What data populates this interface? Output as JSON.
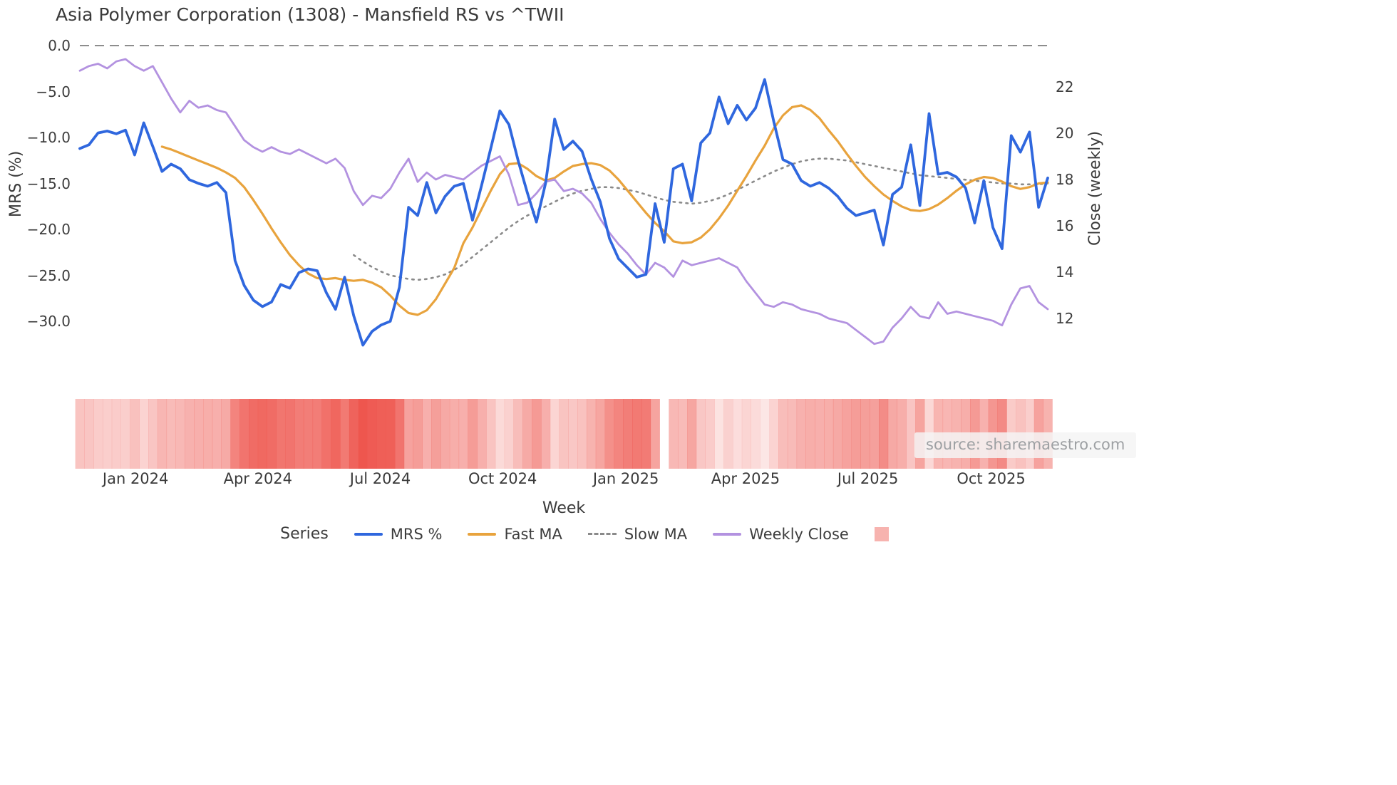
{
  "title": "Asia Polymer Corporation (1308) - Mansfield RS vs ^TWII",
  "source": "source: sharemaestro.com",
  "legend": {
    "title": "Series",
    "items": [
      {
        "label": "MRS %",
        "color": "#2f67de",
        "style": "solid"
      },
      {
        "label": "Fast MA",
        "color": "#e8a33d",
        "style": "solid"
      },
      {
        "label": "Slow MA",
        "color": "#8a8a8a",
        "style": "dashed"
      },
      {
        "label": "Weekly Close",
        "color": "#b392e0",
        "style": "solid"
      },
      {
        "label": "",
        "color": "#ee564e",
        "style": "swatch",
        "opacity": 0.45
      }
    ]
  },
  "chart_data": {
    "type": "line",
    "title": "Asia Polymer Corporation (1308) - Mansfield RS vs ^TWII",
    "grid": false,
    "legend_position": "bottom-center",
    "x_axis": {
      "title": "Week",
      "unit": "week",
      "n_weeks": 107,
      "tick_labels": [
        "Jan 2024",
        "Apr 2024",
        "Jul 2024",
        "Oct 2024",
        "Jan 2025",
        "Apr 2025",
        "Jul 2025",
        "Oct 2025"
      ],
      "tick_week_indices": [
        6.1,
        19.5,
        32.9,
        46.3,
        59.8,
        72.9,
        86.3,
        99.8
      ]
    },
    "left_axis": {
      "title": "MRS (%)",
      "tick_values": [
        0,
        -5,
        -10,
        -15,
        -20,
        -25,
        -30
      ],
      "tick_labels": [
        "0.0",
        "−5.0",
        "−10.0",
        "−15.0",
        "−20.0",
        "−25.0",
        "−30.0"
      ],
      "range": [
        -34,
        1
      ],
      "zero_line_dashed": true
    },
    "right_axis": {
      "title": "Close (weekly)",
      "tick_values": [
        22,
        20,
        18,
        16,
        14,
        12
      ],
      "tick_labels": [
        "22",
        "20",
        "18",
        "16",
        "14",
        "12"
      ],
      "range": [
        10.4,
        23.8
      ]
    },
    "series": [
      {
        "name": "MRS %",
        "axis": "left",
        "color": "#2f67de",
        "style": "solid",
        "values": [
          -11.2,
          -10.8,
          -9.5,
          -9.3,
          -9.6,
          -9.2,
          -11.9,
          -8.4,
          -11.0,
          -13.7,
          -12.9,
          -13.4,
          -14.6,
          -15.0,
          -15.3,
          -14.9,
          -16.0,
          -23.4,
          -26.1,
          -27.7,
          -28.4,
          -27.9,
          -26.0,
          -26.4,
          -24.7,
          -24.3,
          -24.5,
          -26.9,
          -28.7,
          -25.2,
          -29.4,
          -32.6,
          -31.1,
          -30.4,
          -30.0,
          -26.3,
          -17.6,
          -18.5,
          -14.9,
          -18.2,
          -16.4,
          -15.3,
          -15.0,
          -19.0,
          -15.2,
          -11.2,
          -7.1,
          -8.6,
          -12.5,
          -16.0,
          -19.2,
          -15.0,
          -8.0,
          -11.3,
          -10.4,
          -11.5,
          -14.5,
          -17.0,
          -21.0,
          -23.2,
          -24.2,
          -25.2,
          -24.9,
          -17.2,
          -21.4,
          -13.4,
          -12.9,
          -16.9,
          -10.6,
          -9.5,
          -5.6,
          -8.5,
          -6.5,
          -8.1,
          -6.8,
          -3.7,
          -8.3,
          -12.4,
          -12.9,
          -14.7,
          -15.3,
          -14.9,
          -15.5,
          -16.4,
          -17.7,
          -18.5,
          -18.2,
          -17.9,
          -21.7,
          -16.2,
          -15.4,
          -10.8,
          -17.4,
          -7.4,
          -14.0,
          -13.8,
          -14.3,
          -15.5,
          -19.3,
          -14.7,
          -19.8,
          -22.1,
          -9.8,
          -11.6,
          -9.4,
          -17.6,
          -14.4
        ]
      },
      {
        "name": "Fast MA",
        "axis": "left",
        "color": "#e8a33d",
        "style": "solid",
        "values": [
          null,
          null,
          null,
          null,
          null,
          null,
          null,
          null,
          null,
          -11.0,
          -11.3,
          -11.7,
          -12.1,
          -12.5,
          -12.9,
          -13.3,
          -13.8,
          -14.4,
          -15.4,
          -16.8,
          -18.3,
          -19.9,
          -21.4,
          -22.8,
          -23.9,
          -24.8,
          -25.3,
          -25.4,
          -25.3,
          -25.5,
          -25.6,
          -25.5,
          -25.8,
          -26.3,
          -27.2,
          -28.3,
          -29.1,
          -29.3,
          -28.8,
          -27.6,
          -25.9,
          -24.2,
          -21.5,
          -19.8,
          -17.8,
          -15.8,
          -14.0,
          -12.9,
          -12.8,
          -13.4,
          -14.2,
          -14.7,
          -14.4,
          -13.7,
          -13.1,
          -12.9,
          -12.8,
          -13.0,
          -13.6,
          -14.6,
          -15.8,
          -17.0,
          -18.2,
          -19.3,
          -20.2,
          -21.3,
          -21.5,
          -21.4,
          -20.9,
          -20.0,
          -18.8,
          -17.4,
          -15.8,
          -14.2,
          -12.5,
          -10.9,
          -9.0,
          -7.6,
          -6.7,
          -6.5,
          -7.0,
          -7.9,
          -9.2,
          -10.4,
          -11.8,
          -13.1,
          -14.3,
          -15.3,
          -16.2,
          -16.9,
          -17.5,
          -17.9,
          -18.0,
          -17.8,
          -17.3,
          -16.6,
          -15.8,
          -15.1,
          -14.6,
          -14.3,
          -14.4,
          -14.8,
          -15.3,
          -15.6,
          -15.4,
          -15.0,
          -14.9
        ]
      },
      {
        "name": "Slow MA",
        "axis": "left",
        "color": "#8a8a8a",
        "style": "dotted",
        "values": [
          null,
          null,
          null,
          null,
          null,
          null,
          null,
          null,
          null,
          null,
          null,
          null,
          null,
          null,
          null,
          null,
          null,
          null,
          null,
          null,
          null,
          null,
          null,
          null,
          null,
          null,
          null,
          null,
          null,
          null,
          -22.8,
          -23.5,
          -24.1,
          -24.6,
          -25.0,
          -25.2,
          -25.4,
          -25.5,
          -25.4,
          -25.2,
          -24.9,
          -24.4,
          -23.8,
          -23.0,
          -22.2,
          -21.4,
          -20.6,
          -19.8,
          -19.1,
          -18.5,
          -18.0,
          -17.5,
          -17.0,
          -16.5,
          -16.1,
          -15.8,
          -15.6,
          -15.4,
          -15.4,
          -15.5,
          -15.7,
          -15.9,
          -16.2,
          -16.5,
          -16.8,
          -17.0,
          -17.1,
          -17.2,
          -17.1,
          -16.9,
          -16.6,
          -16.2,
          -15.7,
          -15.2,
          -14.7,
          -14.2,
          -13.7,
          -13.3,
          -12.9,
          -12.6,
          -12.4,
          -12.3,
          -12.3,
          -12.4,
          -12.5,
          -12.7,
          -12.9,
          -13.1,
          -13.3,
          -13.5,
          -13.7,
          -13.9,
          -14.1,
          -14.2,
          -14.3,
          -14.4,
          -14.5,
          -14.6,
          -14.7,
          -14.8,
          -14.9,
          -15.0,
          -15.0,
          -15.1,
          -15.1,
          -15.1,
          -15.0
        ]
      },
      {
        "name": "Weekly Close",
        "axis": "right",
        "color": "#b392e0",
        "style": "solid",
        "values": [
          22.7,
          22.9,
          23.0,
          22.8,
          23.1,
          23.2,
          22.9,
          22.7,
          22.9,
          22.2,
          21.5,
          20.9,
          21.4,
          21.1,
          21.2,
          21.0,
          20.9,
          20.3,
          19.7,
          19.4,
          19.2,
          19.4,
          19.2,
          19.1,
          19.3,
          19.1,
          18.9,
          18.7,
          18.9,
          18.5,
          17.5,
          16.9,
          17.3,
          17.2,
          17.6,
          18.3,
          18.9,
          17.9,
          18.3,
          18.0,
          18.2,
          18.1,
          18.0,
          18.3,
          18.6,
          18.8,
          19.0,
          18.2,
          16.9,
          17.0,
          17.4,
          17.9,
          18.0,
          17.5,
          17.6,
          17.4,
          17.0,
          16.3,
          15.7,
          15.2,
          14.8,
          14.3,
          13.9,
          14.4,
          14.2,
          13.8,
          14.5,
          14.3,
          14.4,
          14.5,
          14.6,
          14.4,
          14.2,
          13.6,
          13.1,
          12.6,
          12.5,
          12.7,
          12.6,
          12.4,
          12.3,
          12.2,
          12.0,
          11.9,
          11.8,
          11.5,
          11.2,
          10.9,
          11.0,
          11.6,
          12.0,
          12.5,
          12.1,
          12.0,
          12.7,
          12.2,
          12.3,
          12.2,
          12.1,
          12.0,
          11.9,
          11.7,
          12.6,
          13.3,
          13.4,
          12.7,
          12.4
        ]
      }
    ],
    "heatmap": {
      "description": "weekly relative-strength heat strip (darker red = weaker MRS)",
      "color": "#ee564e",
      "gap_week_indices": [
        64
      ],
      "alpha_rule": "clamp(-MRS/32, 0.15, 1)"
    }
  }
}
